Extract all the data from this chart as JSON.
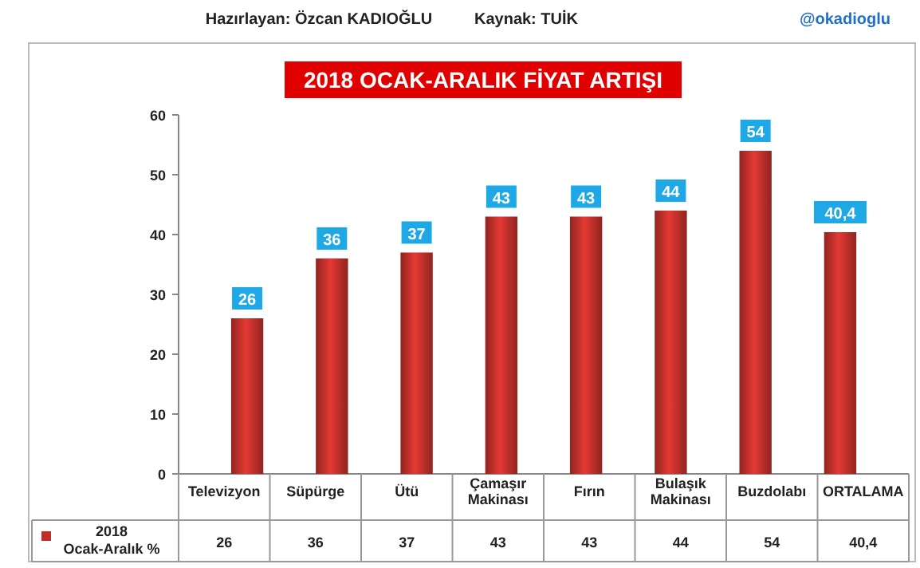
{
  "chart_data": {
    "type": "bar",
    "title": "2018 OCAK-ARALIK FİYAT ARTIŞI",
    "annotations": [
      "Hazırlayan: Özcan KADIOĞLU",
      "Kaynak: TUİK",
      "@okadioglu"
    ],
    "categories": [
      "Televizyon",
      "Süpürge",
      "Ütü",
      "Çamaşır Makinası",
      "Fırın",
      "Bulaşık Makinası",
      "Buzdolabı",
      "ORTALAMA"
    ],
    "series": [
      {
        "name": "2018 Ocak-Aralık %",
        "color": "#c0302b",
        "values": [
          26,
          36,
          37,
          43,
          43,
          44,
          54,
          40.4
        ],
        "value_labels": [
          "26",
          "36",
          "37",
          "43",
          "43",
          "44",
          "54",
          "40,4"
        ]
      }
    ],
    "ylim": [
      0,
      60
    ],
    "yticks": [
      0,
      10,
      20,
      30,
      40,
      50,
      60
    ],
    "grid": false,
    "legend": "bottom",
    "data_labels": true
  }
}
